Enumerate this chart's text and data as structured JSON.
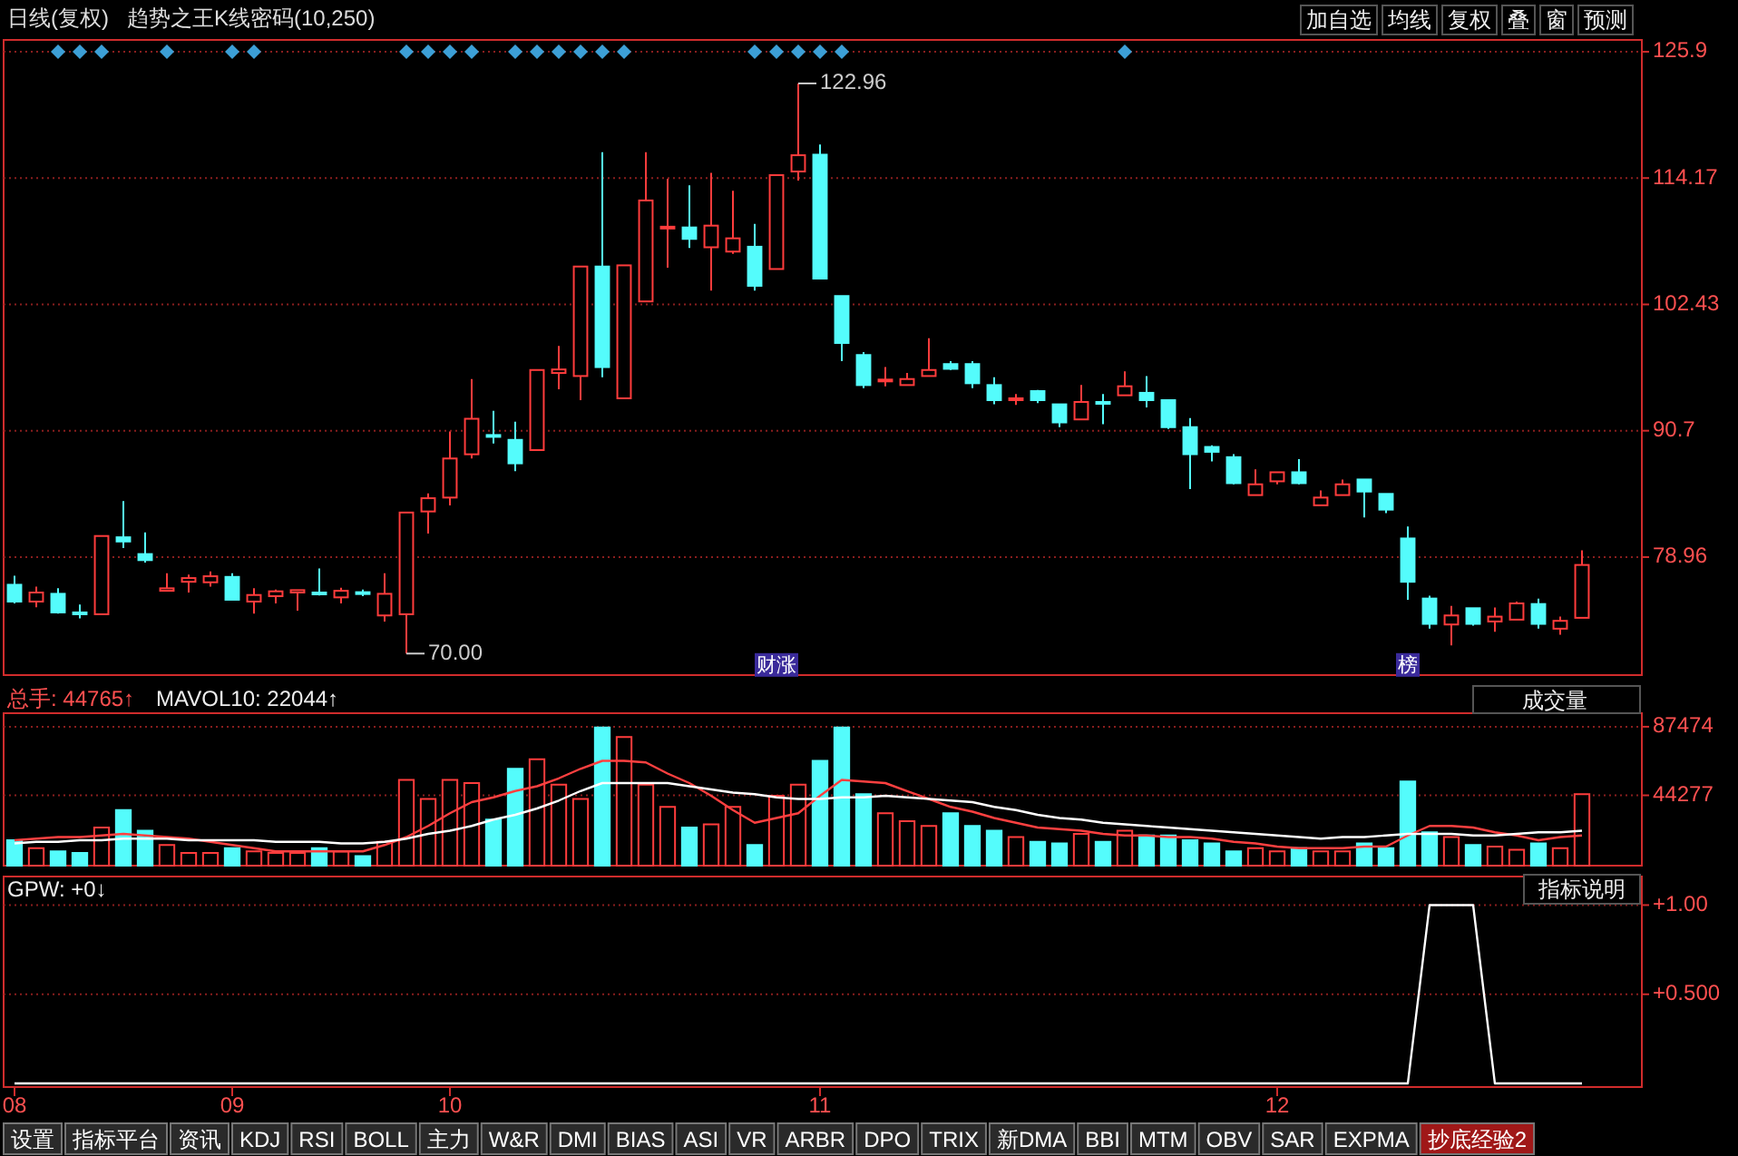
{
  "chart_data": [
    {
      "type": "candlestick",
      "title": "日线(复权)",
      "subtitle": "趋势之王K线密码(10,250)",
      "categories": [
        null,
        null,
        null,
        null,
        null,
        null,
        null,
        null,
        null,
        null,
        null,
        null,
        null,
        null,
        null,
        null,
        null,
        null,
        null,
        null,
        null,
        null,
        null,
        null,
        null,
        null,
        null,
        null,
        null,
        null,
        null,
        null,
        null,
        null,
        null,
        null,
        null,
        null,
        null,
        null,
        null,
        null,
        null,
        null,
        null,
        null,
        null,
        null,
        null,
        null,
        null,
        null,
        null,
        null,
        null,
        null,
        null,
        null,
        null,
        null,
        null,
        null,
        null,
        null,
        null,
        null,
        null,
        null,
        null,
        null,
        null,
        null,
        null
      ],
      "ylim": [
        68,
        127
      ],
      "yticks": [
        125.9,
        114.17,
        102.43,
        90.7,
        78.96
      ],
      "grid": "y",
      "tick_labels": "y",
      "series": [
        {
          "colors": [
            "#54fcfc",
            "#ff3c3c",
            "#54fcfc",
            "#54fcfc",
            "#ff3c3c",
            "#54fcfc",
            "#54fcfc",
            "#ff3c3c",
            "#ff3c3c",
            "#ff3c3c",
            "#54fcfc",
            "#ff3c3c",
            "#ff3c3c",
            "#ff3c3c",
            "#54fcfc",
            "#ff3c3c",
            "#54fcfc",
            "#ff3c3c",
            "#ff3c3c",
            "#ff3c3c",
            "#ff3c3c",
            "#ff3c3c",
            "#54fcfc",
            "#54fcfc",
            "#ff3c3c",
            "#ff3c3c",
            "#ff3c3c",
            "#54fcfc",
            "#ff3c3c",
            "#ff3c3c",
            "#ff3c3c",
            "#54fcfc",
            "#ff3c3c",
            "#ff3c3c",
            "#54fcfc",
            "#ff3c3c",
            "#ff3c3c",
            "#54fcfc",
            "#54fcfc",
            "#54fcfc",
            "#ff3c3c",
            "#ff3c3c",
            "#ff3c3c",
            "#54fcfc",
            "#54fcfc",
            "#54fcfc",
            "#ff3c3c",
            "#54fcfc",
            "#54fcfc",
            "#ff3c3c",
            "#54fcfc",
            "#ff3c3c",
            "#54fcfc",
            "#54fcfc",
            "#54fcfc",
            "#54fcfc",
            "#54fcfc",
            "#ff3c3c",
            "#ff3c3c",
            "#54fcfc",
            "#ff3c3c",
            "#ff3c3c",
            "#54fcfc",
            "#54fcfc",
            "#54fcfc",
            "#54fcfc",
            "#ff3c3c",
            "#54fcfc",
            "#ff3c3c",
            "#ff3c3c",
            "#54fcfc",
            "#ff3c3c",
            "#ff3c3c"
          ],
          "ohlc": [
            [
              76.39,
              77.23,
              74.66,
              74.83
            ],
            [
              74.83,
              76.22,
              74.3,
              75.67
            ],
            [
              75.55,
              76.06,
              73.71,
              73.82
            ],
            [
              73.82,
              74.55,
              73.26,
              73.8
            ],
            [
              73.65,
              80.92,
              73.65,
              80.92
            ],
            [
              80.8,
              84.16,
              79.8,
              80.41
            ],
            [
              79.24,
              81.25,
              78.46,
              78.68
            ],
            [
              75.83,
              77.46,
              75.83,
              76.06
            ],
            [
              76.67,
              77.34,
              75.67,
              77.01
            ],
            [
              76.62,
              77.62,
              76.22,
              77.18
            ],
            [
              77.12,
              77.46,
              75.0,
              75.0
            ],
            [
              74.83,
              76.06,
              73.71,
              75.44
            ],
            [
              75.33,
              75.95,
              74.66,
              75.78
            ],
            [
              75.67,
              75.89,
              73.99,
              75.89
            ],
            [
              75.67,
              77.9,
              75.39,
              75.6
            ],
            [
              75.22,
              76.11,
              74.66,
              75.83
            ],
            [
              75.7,
              75.95,
              75.33,
              75.6
            ],
            [
              73.54,
              77.46,
              72.98,
              75.55
            ],
            [
              73.65,
              83.1,
              70.0,
              83.1
            ],
            [
              83.2,
              84.88,
              81.14,
              84.43
            ],
            [
              84.49,
              90.64,
              83.76,
              88.12
            ],
            [
              88.51,
              95.5,
              88.12,
              91.81
            ],
            [
              90.3,
              92.54,
              89.52,
              90.2
            ],
            [
              89.85,
              91.53,
              86.95,
              87.67
            ],
            [
              88.9,
              96.34,
              88.9,
              96.34
            ],
            [
              96.06,
              98.57,
              94.55,
              96.39
            ],
            [
              95.78,
              105.95,
              93.54,
              105.95
            ],
            [
              105.95,
              116.56,
              95.66,
              96.61
            ],
            [
              93.71,
              106.06,
              93.71,
              106.06
            ],
            [
              102.71,
              116.56,
              102.71,
              112.09
            ],
            [
              109.58,
              114.11,
              105.84,
              109.65
            ],
            [
              109.58,
              113.49,
              107.68,
              108.52
            ],
            [
              107.74,
              114.66,
              103.71,
              109.75
            ],
            [
              107.34,
              112.99,
              107.12,
              108.57
            ],
            [
              107.79,
              109.91,
              103.71,
              104.16
            ],
            [
              105.72,
              114.44,
              105.72,
              114.44
            ],
            [
              114.78,
              122.96,
              113.94,
              116.29
            ],
            [
              116.34,
              117.29,
              104.83,
              104.83
            ],
            [
              103.21,
              103.21,
              97.17,
              98.85
            ],
            [
              97.73,
              98.01,
              94.66,
              94.94
            ],
            [
              95.3,
              96.62,
              94.83,
              95.45
            ],
            [
              94.94,
              96.06,
              94.94,
              95.5
            ],
            [
              95.78,
              99.3,
              95.78,
              96.34
            ],
            [
              96.89,
              97.17,
              96.34,
              96.45
            ],
            [
              96.89,
              97.17,
              94.66,
              95.11
            ],
            [
              94.94,
              95.66,
              93.15,
              93.54
            ],
            [
              93.6,
              94.1,
              93.09,
              93.71
            ],
            [
              94.38,
              94.49,
              93.26,
              93.54
            ],
            [
              93.15,
              93.15,
              91.03,
              91.47
            ],
            [
              91.75,
              94.94,
              91.75,
              93.37
            ],
            [
              93.37,
              94.1,
              91.31,
              93.26
            ],
            [
              93.99,
              96.22,
              93.99,
              94.83
            ],
            [
              94.22,
              95.78,
              92.87,
              93.54
            ],
            [
              93.54,
              93.54,
              90.86,
              91.03
            ],
            [
              91.03,
              91.87,
              85.27,
              88.52
            ],
            [
              89.19,
              89.35,
              87.85,
              88.74
            ],
            [
              88.24,
              88.52,
              85.72,
              85.83
            ],
            [
              84.72,
              87.12,
              84.72,
              85.72
            ],
            [
              86.0,
              86.84,
              85.72,
              86.84
            ],
            [
              86.84,
              88.07,
              85.72,
              85.83
            ],
            [
              83.77,
              85.16,
              83.77,
              84.49
            ],
            [
              84.72,
              86.17,
              84.72,
              85.72
            ],
            [
              86.17,
              86.17,
              82.65,
              85.05
            ],
            [
              84.83,
              84.83,
              83.04,
              83.37
            ],
            [
              80.69,
              81.81,
              74.99,
              76.67
            ],
            [
              75.11,
              75.38,
              72.31,
              72.76
            ],
            [
              72.7,
              74.43,
              70.75,
              73.54
            ],
            [
              74.21,
              74.21,
              72.59,
              72.76
            ],
            [
              72.98,
              74.27,
              72.03,
              73.43
            ],
            [
              73.15,
              74.83,
              73.15,
              74.66
            ],
            [
              74.6,
              75.11,
              72.31,
              72.76
            ],
            [
              72.31,
              73.43,
              71.75,
              73.04
            ],
            [
              73.32,
              79.58,
              73.32,
              78.23
            ]
          ]
        },
        {
          "type": "scatter",
          "marker": "diamond",
          "color": "#3c9fd6",
          "values": [
            null,
            null,
            125.9,
            125.9,
            125.9,
            null,
            null,
            125.9,
            null,
            null,
            125.9,
            125.9,
            null,
            null,
            null,
            null,
            null,
            null,
            125.9,
            125.9,
            125.9,
            125.9,
            null,
            125.9,
            125.9,
            125.9,
            125.9,
            125.9,
            125.9,
            null,
            null,
            null,
            null,
            null,
            125.9,
            125.9,
            125.9,
            125.9,
            125.9,
            null,
            null,
            null,
            null,
            null,
            null,
            null,
            null,
            null,
            null,
            null,
            null,
            125.9,
            null,
            null,
            null,
            null,
            null,
            null,
            null,
            null,
            null,
            null,
            null,
            null,
            null,
            null,
            null,
            null,
            null,
            null,
            null,
            null,
            null
          ]
        }
      ],
      "annotations": [
        "122.96",
        "70.00",
        "财涨",
        "榜",
        "加自选",
        "均线",
        "复权",
        "叠",
        "窗",
        "预测"
      ]
    },
    {
      "type": "bar",
      "categories": [
        null,
        null,
        null,
        null,
        null,
        null,
        null,
        null,
        null,
        null,
        null,
        null,
        null,
        null,
        null,
        null,
        null,
        null,
        null,
        null,
        null,
        null,
        null,
        null,
        null,
        null,
        null,
        null,
        null,
        null,
        null,
        null,
        null,
        null,
        null,
        null,
        null,
        null,
        null,
        null,
        null,
        null,
        null,
        null,
        null,
        null,
        null,
        null,
        null,
        null,
        null,
        null,
        null,
        null,
        null,
        null,
        null,
        null,
        null,
        null,
        null,
        null,
        null,
        null,
        null,
        null,
        null,
        null,
        null,
        null,
        null,
        null,
        null
      ],
      "ylim": [
        0,
        96000
      ],
      "yticks": [
        87474,
        44277
      ],
      "grid": "y",
      "tick_labels": "y",
      "series": [
        {
          "values": [
            16000,
            11000,
            9000,
            8000,
            24000,
            35000,
            22000,
            13000,
            8000,
            8000,
            11000,
            9000,
            8000,
            8000,
            11000,
            9000,
            6000,
            15000,
            54000,
            42000,
            54000,
            52000,
            29000,
            61000,
            67000,
            51000,
            42000,
            87000,
            81000,
            51000,
            37000,
            24000,
            26000,
            37000,
            13000,
            44000,
            51000,
            66000,
            87000,
            45000,
            33000,
            28000,
            25000,
            33000,
            25000,
            22000,
            18000,
            15000,
            14000,
            20000,
            15000,
            22000,
            19000,
            19000,
            16000,
            14000,
            9000,
            11000,
            9000,
            11000,
            9000,
            9000,
            14000,
            11000,
            53000,
            21000,
            18000,
            13000,
            12000,
            10000,
            14000,
            11000,
            45000
          ],
          "colors": [
            "#54fcfc",
            "#ff3c3c",
            "#54fcfc",
            "#54fcfc",
            "#ff3c3c",
            "#54fcfc",
            "#54fcfc",
            "#ff3c3c",
            "#ff3c3c",
            "#ff3c3c",
            "#54fcfc",
            "#ff3c3c",
            "#ff3c3c",
            "#ff3c3c",
            "#54fcfc",
            "#ff3c3c",
            "#54fcfc",
            "#ff3c3c",
            "#ff3c3c",
            "#ff3c3c",
            "#ff3c3c",
            "#ff3c3c",
            "#54fcfc",
            "#54fcfc",
            "#ff3c3c",
            "#ff3c3c",
            "#ff3c3c",
            "#54fcfc",
            "#ff3c3c",
            "#ff3c3c",
            "#ff3c3c",
            "#54fcfc",
            "#ff3c3c",
            "#ff3c3c",
            "#54fcfc",
            "#ff3c3c",
            "#ff3c3c",
            "#54fcfc",
            "#54fcfc",
            "#54fcfc",
            "#ff3c3c",
            "#ff3c3c",
            "#ff3c3c",
            "#54fcfc",
            "#54fcfc",
            "#54fcfc",
            "#ff3c3c",
            "#54fcfc",
            "#54fcfc",
            "#ff3c3c",
            "#54fcfc",
            "#ff3c3c",
            "#54fcfc",
            "#54fcfc",
            "#54fcfc",
            "#54fcfc",
            "#54fcfc",
            "#ff3c3c",
            "#ff3c3c",
            "#54fcfc",
            "#ff3c3c",
            "#ff3c3c",
            "#54fcfc",
            "#54fcfc",
            "#54fcfc",
            "#54fcfc",
            "#ff3c3c",
            "#54fcfc",
            "#ff3c3c",
            "#ff3c3c",
            "#54fcfc",
            "#ff3c3c",
            "#ff3c3c"
          ]
        },
        {
          "type": "line",
          "color": "#ff4040",
          "values": [
            16000,
            17000,
            18000,
            18000,
            19000,
            20000,
            19000,
            18000,
            17000,
            15000,
            13000,
            11000,
            9000,
            9000,
            9000,
            9000,
            9000,
            13000,
            18000,
            25000,
            33000,
            40000,
            43000,
            47000,
            50000,
            55000,
            61000,
            66000,
            66000,
            65000,
            58000,
            52000,
            44000,
            35000,
            27000,
            30000,
            33000,
            44000,
            54000,
            53000,
            52000,
            47000,
            42000,
            37000,
            34000,
            30000,
            27000,
            24000,
            23000,
            22000,
            20000,
            19000,
            19000,
            18000,
            18000,
            17000,
            15000,
            14000,
            12000,
            11000,
            11000,
            11000,
            12000,
            12000,
            19000,
            25000,
            25000,
            24000,
            21000,
            19000,
            16000,
            18000,
            19000
          ]
        },
        {
          "type": "line",
          "color": "#ffffff",
          "values": [
            14000,
            15000,
            15000,
            16000,
            16000,
            17000,
            17000,
            17000,
            16000,
            16000,
            16000,
            16000,
            15000,
            15000,
            15000,
            14000,
            14000,
            15000,
            17000,
            20000,
            22000,
            25000,
            29000,
            32000,
            36000,
            41000,
            47000,
            52000,
            52000,
            52000,
            52000,
            50000,
            48000,
            46000,
            45000,
            43000,
            42000,
            42000,
            43000,
            43000,
            44000,
            43000,
            42000,
            41000,
            40000,
            37000,
            35000,
            32000,
            30000,
            29000,
            27000,
            26000,
            25000,
            24000,
            23000,
            22000,
            21000,
            20000,
            19000,
            18000,
            17000,
            18000,
            18000,
            19000,
            20000,
            20000,
            20000,
            19000,
            19000,
            20000,
            21000,
            21000,
            22000
          ]
        }
      ],
      "annotations": [
        "总手: 44765↑",
        "MAVOL10: 22044↑",
        "成交量"
      ]
    },
    {
      "type": "line",
      "categories": [
        "08",
        null,
        null,
        null,
        null,
        null,
        null,
        null,
        null,
        null,
        "09",
        null,
        null,
        null,
        null,
        null,
        null,
        null,
        null,
        null,
        "10",
        null,
        null,
        null,
        null,
        null,
        null,
        null,
        null,
        null,
        null,
        null,
        null,
        null,
        null,
        null,
        null,
        "11",
        null,
        null,
        null,
        null,
        null,
        null,
        null,
        null,
        null,
        null,
        null,
        null,
        null,
        null,
        null,
        null,
        null,
        null,
        null,
        null,
        "12",
        null,
        null,
        null,
        null,
        null,
        null,
        null,
        null,
        null,
        null,
        null,
        null,
        null,
        null
      ],
      "ylim": [
        -0.02,
        1.16
      ],
      "grid": "y",
      "yticks": [
        {
          "value": 1,
          "label": "+1.00"
        },
        {
          "value": 0.5,
          "label": "+0.500"
        }
      ],
      "series": [
        {
          "color": "#ffffff",
          "values": [
            0,
            0,
            0,
            0,
            0,
            0,
            0,
            0,
            0,
            0,
            0,
            0,
            0,
            0,
            0,
            0,
            0,
            0,
            0,
            0,
            0,
            0,
            0,
            0,
            0,
            0,
            0,
            0,
            0,
            0,
            0,
            0,
            0,
            0,
            0,
            0,
            0,
            0,
            0,
            0,
            0,
            0,
            0,
            0,
            0,
            0,
            0,
            0,
            0,
            0,
            0,
            0,
            0,
            0,
            0,
            0,
            0,
            0,
            0,
            0,
            0,
            0,
            0,
            0,
            0,
            1,
            1,
            1,
            0,
            0,
            0,
            0,
            0
          ]
        }
      ],
      "annotations": [
        "GPW: +0↓",
        "指标说明",
        "设置",
        "指标平台",
        "资讯",
        "KDJ",
        "RSI",
        "BOLL",
        "主力",
        "W&R",
        "DMI",
        "BIAS",
        "ASI",
        "VR",
        "ARBR",
        "DPO",
        "TRIX",
        "新DMA",
        "BBI",
        "MTM",
        "OBV",
        "SAR",
        "EXPMA",
        "抄底经验2"
      ]
    }
  ]
}
